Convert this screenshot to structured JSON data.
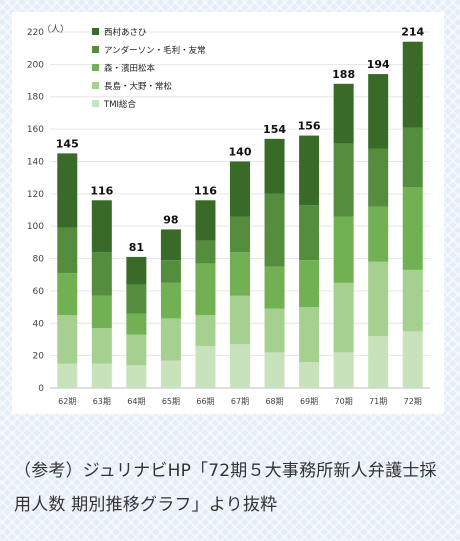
{
  "chart_data": {
    "type": "bar",
    "stacked": true,
    "unit_label": "（人）",
    "ylim": [
      0,
      220
    ],
    "yticks": [
      "0",
      "20",
      "40",
      "60",
      "80",
      "100",
      "120",
      "140",
      "160",
      "180",
      "200",
      "220"
    ],
    "categories": [
      "62期",
      "63期",
      "64期",
      "65期",
      "66期",
      "67期",
      "68期",
      "69期",
      "70期",
      "71期",
      "72期"
    ],
    "totals": [
      145,
      116,
      81,
      98,
      116,
      140,
      154,
      156,
      188,
      194,
      214
    ],
    "total_labels": [
      "145",
      "116",
      "81",
      "98",
      "116",
      "140",
      "154",
      "156",
      "188",
      "194",
      "214"
    ],
    "series": [
      {
        "name": "TMI総合",
        "color": "#c8e2bb",
        "values": [
          15,
          15,
          14,
          17,
          26,
          27,
          22,
          16,
          22,
          32,
          35
        ]
      },
      {
        "name": "長島・大野・常松",
        "color": "#a5d08f",
        "values": [
          30,
          22,
          19,
          26,
          19,
          30,
          27,
          34,
          43,
          46,
          38
        ]
      },
      {
        "name": "森・濱田松本",
        "color": "#71b153",
        "values": [
          26,
          20,
          13,
          22,
          32,
          27,
          26,
          29,
          41,
          34,
          51
        ]
      },
      {
        "name": "アンダーソン・毛利・友常",
        "color": "#538d3d",
        "values": [
          28,
          27,
          18,
          14,
          14,
          22,
          45,
          34,
          45,
          36,
          37
        ]
      },
      {
        "name": "西村あさひ",
        "color": "#3a6a27",
        "values": [
          46,
          32,
          17,
          19,
          25,
          34,
          34,
          43,
          37,
          46,
          53
        ]
      }
    ],
    "legend_position": "top-left",
    "grid": true
  },
  "caption": "（参考）ジュリナビHP「72期５大事務所新人弁護士採用人数 期別推移グラフ」より抜粋"
}
